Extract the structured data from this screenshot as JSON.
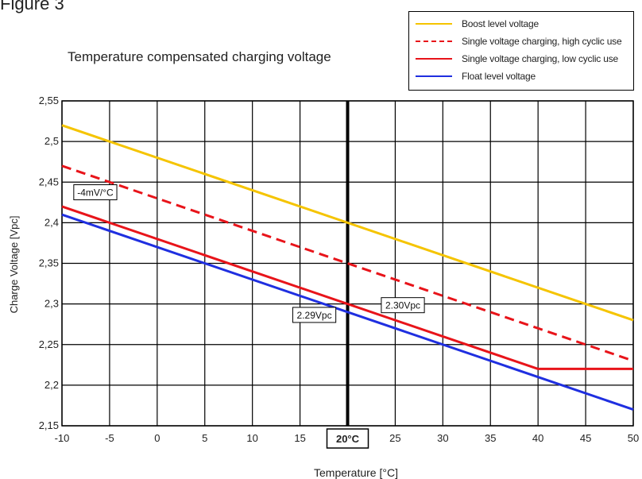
{
  "figure_label": "Figure 3",
  "chart_data": {
    "type": "line",
    "title": "Temperature compensated charging voltage",
    "xlabel": "Temperature [°C]",
    "ylabel": "Charge Voltage [Vpc]",
    "xlim": [
      -10,
      50
    ],
    "ylim": [
      2.15,
      2.55
    ],
    "grid": true,
    "legend_position": "top-right",
    "xticks": [
      "-10",
      "-5",
      "0",
      "5",
      "10",
      "15",
      "20°C",
      "25",
      "30",
      "35",
      "40",
      "45",
      "50"
    ],
    "yticks": [
      "2,15",
      "2,2",
      "2,25",
      "2,3",
      "2,35",
      "2,4",
      "2,45",
      "2,5",
      "2,55"
    ],
    "series": [
      {
        "name": "Boost level voltage",
        "color": "#f5c400",
        "dash": false,
        "x": [
          -10,
          50
        ],
        "y": [
          2.52,
          2.28
        ]
      },
      {
        "name": "Single voltage charging, high cyclic use",
        "color": "#e8141a",
        "dash": true,
        "x": [
          -10,
          50
        ],
        "y": [
          2.47,
          2.23
        ]
      },
      {
        "name": "Single voltage charging, low cyclic use",
        "color": "#e8141a",
        "dash": false,
        "x": [
          -10,
          40,
          50
        ],
        "y": [
          2.42,
          2.22,
          2.22
        ]
      },
      {
        "name": "Float level voltage",
        "color": "#1f2fe0",
        "dash": false,
        "x": [
          -10,
          50
        ],
        "y": [
          2.41,
          2.17
        ]
      }
    ],
    "annotations": [
      {
        "text": "-4mV/°C",
        "x": -6.5,
        "y": 2.437
      },
      {
        "text": "2.29Vpc",
        "x": 16.5,
        "y": 2.286
      },
      {
        "text": "2.30Vpc",
        "x": 25.8,
        "y": 2.298
      }
    ],
    "highlight_x": 20
  }
}
